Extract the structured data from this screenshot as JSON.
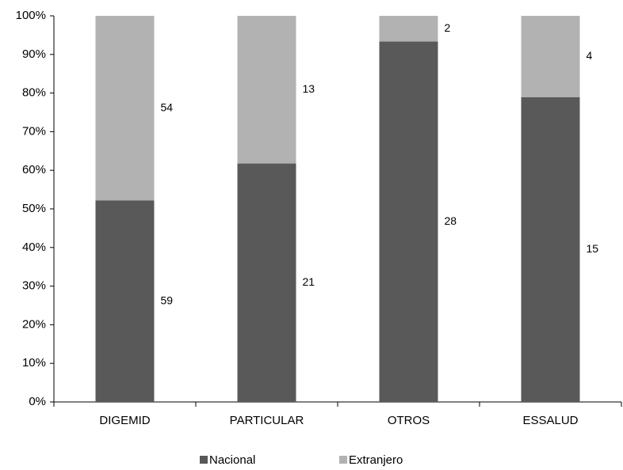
{
  "chart_data": {
    "type": "bar",
    "stacking": "percent",
    "categories": [
      "DIGEMID",
      "PARTICULAR",
      "OTROS",
      "ESSALUD"
    ],
    "series": [
      {
        "name": "Nacional",
        "color": "#595959",
        "values": [
          59,
          21,
          28,
          15
        ]
      },
      {
        "name": "Extranjero",
        "color": "#b2b2b2",
        "values": [
          54,
          13,
          2,
          4
        ]
      }
    ],
    "ylim": [
      0,
      100
    ],
    "yticks": [
      {
        "value": 0,
        "label": "0%"
      },
      {
        "value": 10,
        "label": "10%"
      },
      {
        "value": 20,
        "label": "20%"
      },
      {
        "value": 30,
        "label": "30%"
      },
      {
        "value": 40,
        "label": "40%"
      },
      {
        "value": 50,
        "label": "50%"
      },
      {
        "value": 60,
        "label": "60%"
      },
      {
        "value": 70,
        "label": "70%"
      },
      {
        "value": 80,
        "label": "80%"
      },
      {
        "value": 90,
        "label": "90%"
      },
      {
        "value": 100,
        "label": "100%"
      }
    ],
    "grid": false,
    "legend": "bottom"
  }
}
